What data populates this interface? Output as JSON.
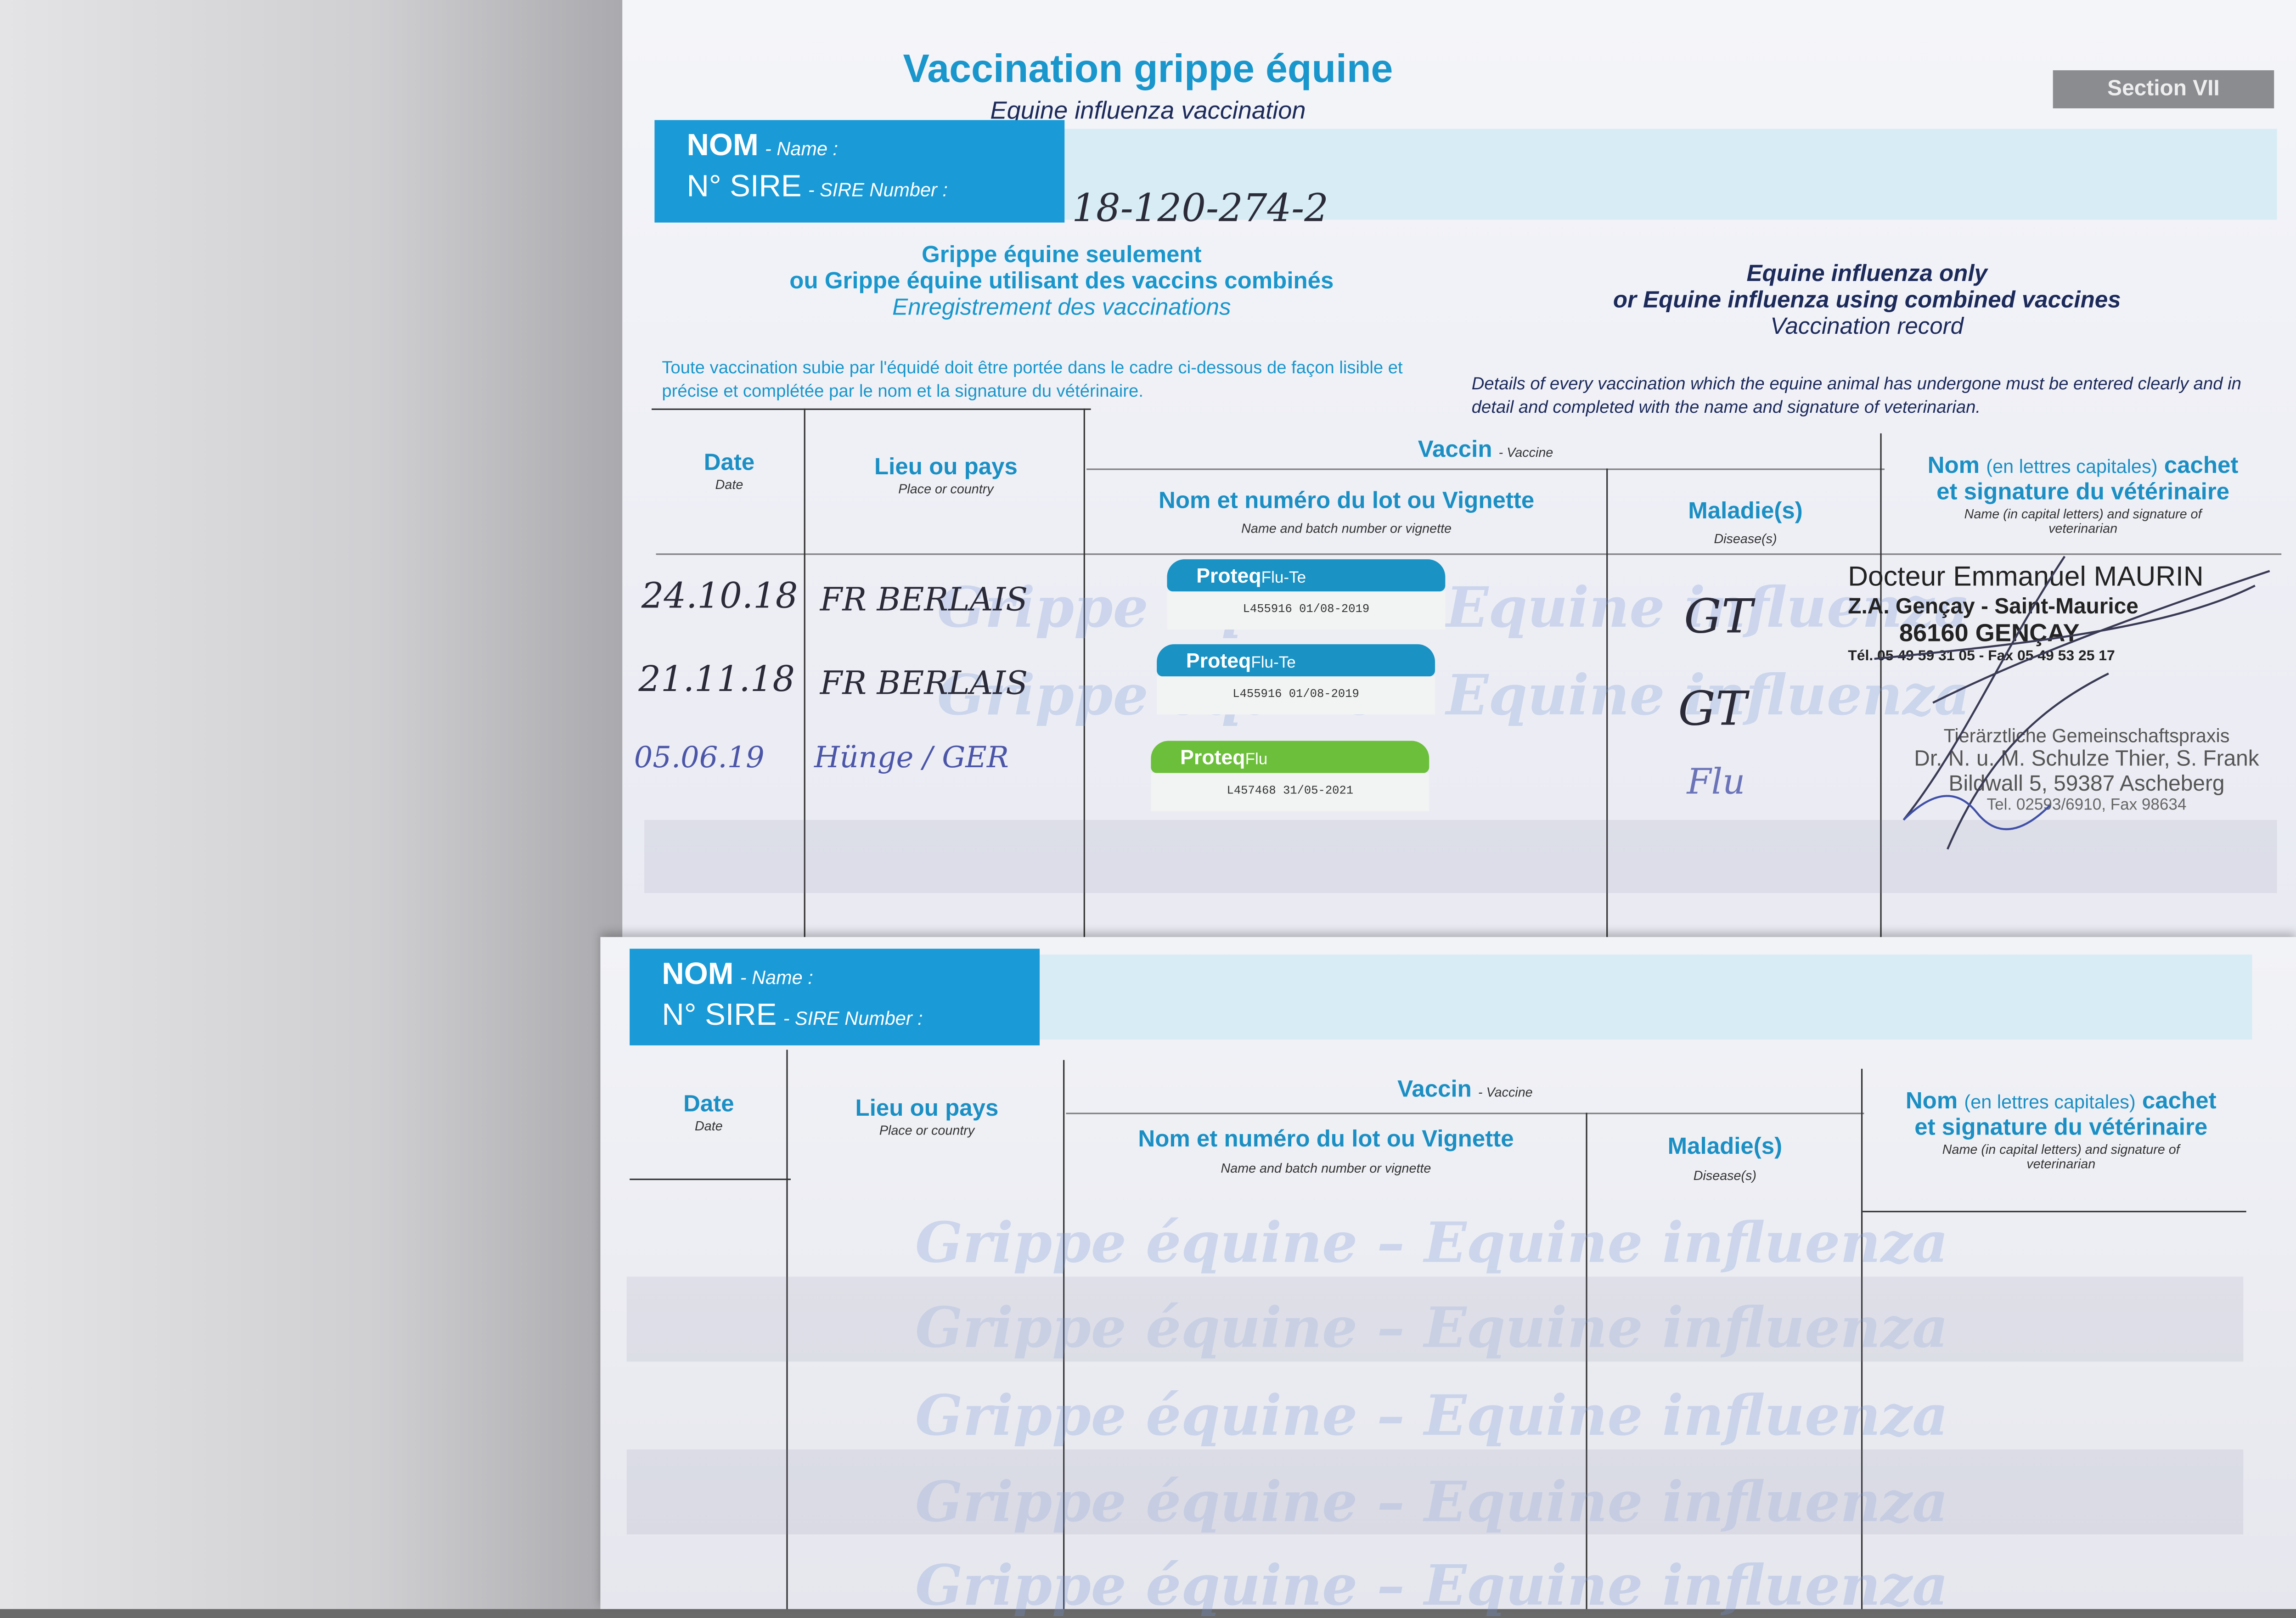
{
  "header": {
    "title": "Vaccination grippe équine",
    "subtitle": "Equine influenza vaccination",
    "section": "Section VII"
  },
  "identity": {
    "nom_label": "NOM",
    "nom_en": "- Name :",
    "sire_label": "N° SIRE",
    "sire_en": "- SIRE Number :",
    "sire_value": "18-120-274-2"
  },
  "intro_fr": {
    "l1": "Grippe équine seulement",
    "l2": "ou Grippe équine utilisant des vaccins combinés",
    "l3": "Enregistrement des vaccinations"
  },
  "intro_en": {
    "l1": "Equine influenza only",
    "l2": "or Equine influenza using combined vaccines",
    "l3": "Vaccination record"
  },
  "instructions": {
    "fr": "Toute vaccination subie par l'équidé doit être portée dans le cadre ci-dessous de façon lisible et précise et complétée par le nom et la signature du vétérinaire.",
    "en": "Details of every vaccination which the equine animal has undergone must be entered clearly and in detail and completed with the name and signature of veterinarian."
  },
  "table_header": {
    "date": "Date",
    "date_en": "Date",
    "place": "Lieu ou pays",
    "place_en": "Place or country",
    "vaccine": "Vaccin",
    "vaccine_en": "- Vaccine",
    "batch": "Nom et numéro du lot ou Vignette",
    "batch_en": "Name and batch number or vignette",
    "disease": "Maladie(s)",
    "disease_en": "Disease(s)",
    "vet_a": "Nom",
    "vet_b": "(en lettres capitales)",
    "vet_c": "cachet",
    "vet_d": "et signature du vétérinaire",
    "vet_en": "Name (in capital letters) and signature of veterinarian"
  },
  "rows": [
    {
      "date": "24.10.18",
      "place": "FR BERLAIS",
      "sticker_brand": "Proteq",
      "sticker_product": "Flu-Te",
      "sticker_batch": "L455916  01/08-2019",
      "sticker_color": "#1a92c4",
      "disease": "GT"
    },
    {
      "date": "21.11.18",
      "place": "FR BERLAIS",
      "sticker_brand": "Proteq",
      "sticker_product": "Flu-Te",
      "sticker_batch": "L455916  01/08-2019",
      "sticker_color": "#1a92c4",
      "disease": "GT"
    },
    {
      "date": "05.06.19",
      "place": "Hünge / GER",
      "sticker_brand": "Proteq",
      "sticker_product": "Flu",
      "sticker_batch": "L457468  31/05-2021",
      "sticker_color": "#6cbf3a",
      "disease": "Flu"
    }
  ],
  "stamps": {
    "fr": {
      "l1": "Docteur Emmanuel MAURIN",
      "l2": "Z.A. Gençay - Saint-Maurice",
      "l3": "86160 GENÇAY",
      "l4": "Tél. 05 49 59 31 05 - Fax 05 49 53 25 17"
    },
    "de": {
      "l1": "Tierärztliche Gemeinschaftspraxis",
      "l2": "Dr. N. u. M. Schulze Thier, S. Frank",
      "l3": "Bildwall 5, 59387 Ascheberg",
      "l4": "Tel. 02593/6910, Fax 98634"
    }
  },
  "watermark": "Grippe équine – Equine influenza"
}
